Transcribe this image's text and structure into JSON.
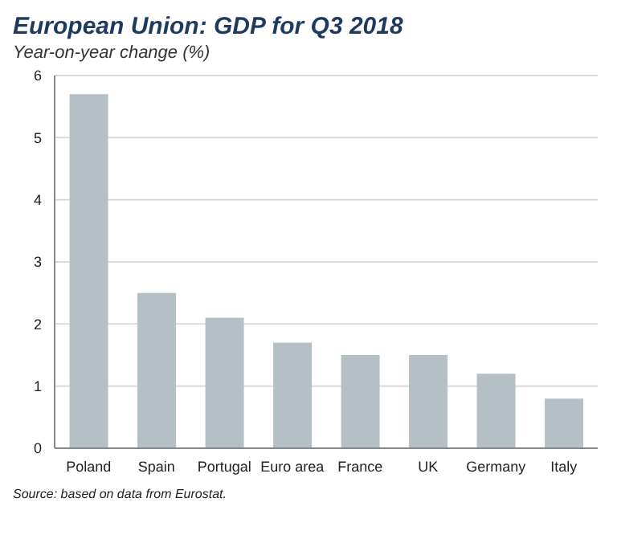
{
  "chart_data": {
    "type": "bar",
    "title": "European Union: GDP for Q3 2018",
    "subtitle": "Year-on-year change (%)",
    "categories": [
      "Poland",
      "Spain",
      "Portugal",
      "Euro area",
      "France",
      "UK",
      "Germany",
      "Italy"
    ],
    "values": [
      5.7,
      2.5,
      2.1,
      1.7,
      1.5,
      1.5,
      1.2,
      0.8
    ],
    "color": "#b4bfc6",
    "ylim": [
      0,
      6
    ],
    "yticks": [
      0,
      1,
      2,
      3,
      4,
      5,
      6
    ],
    "grid": "y",
    "annotations": [
      "Source: based on data from Eurostat."
    ]
  }
}
